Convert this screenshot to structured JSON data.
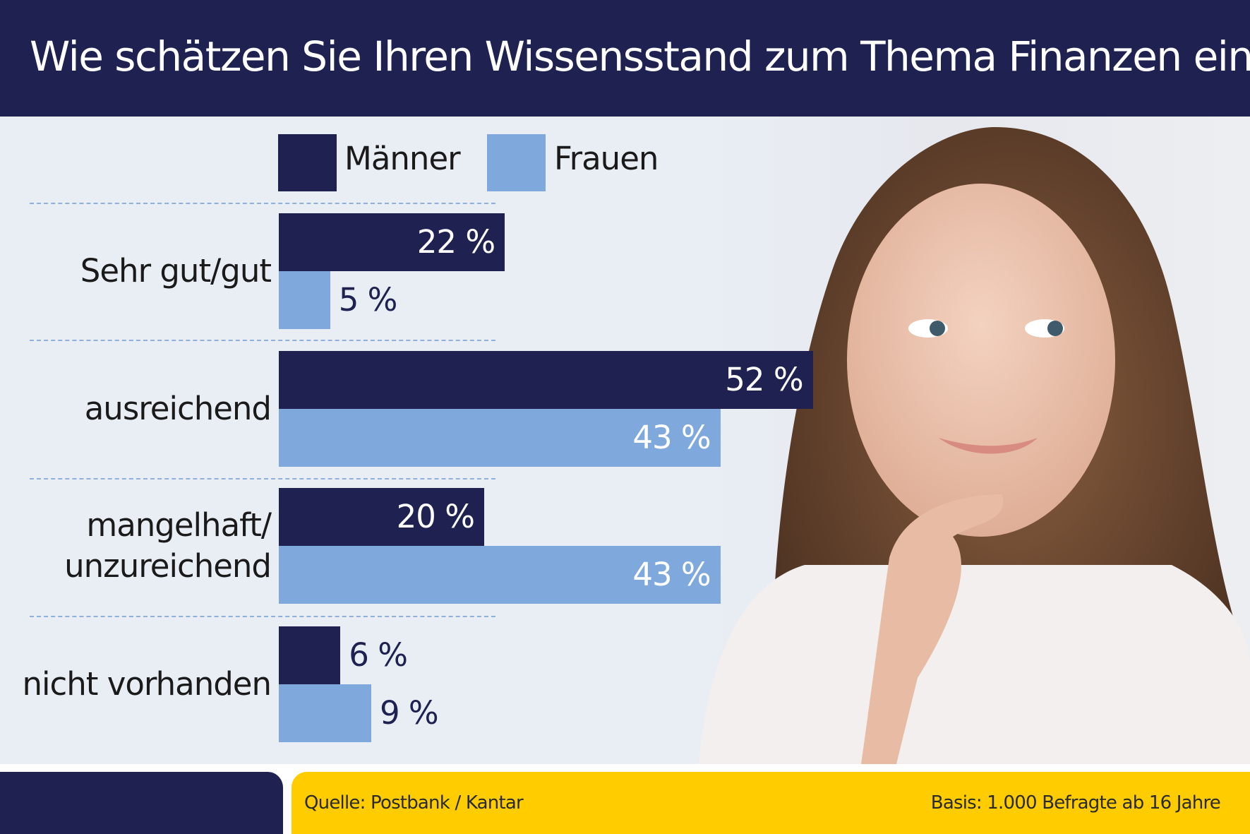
{
  "header": {
    "title": "Wie schätzen Sie Ihren Wissensstand zum Thema Finanzen ein?"
  },
  "colors": {
    "maenner": "#1f2250",
    "frauen": "#7fa9dc",
    "header": "#1f2250",
    "footer_accent": "#ffcc00"
  },
  "chart_data": {
    "type": "bar",
    "orientation": "horizontal",
    "title": "Wie schätzen Sie Ihren Wissensstand zum Thema Finanzen ein?",
    "categories": [
      "Sehr gut/gut",
      "ausreichend",
      "mangelhaft/\nunzureichend",
      "nicht vorhanden"
    ],
    "series": [
      {
        "name": "Männer",
        "values": [
          22,
          52,
          20,
          6
        ],
        "labels": [
          "22 %",
          "52 %",
          "20 %",
          "6 %"
        ]
      },
      {
        "name": "Frauen",
        "values": [
          5,
          43,
          43,
          9
        ],
        "labels": [
          "5 %",
          "43 %",
          "43 %",
          "9 %"
        ]
      }
    ],
    "unit": "%",
    "legend": "top",
    "grid": false
  },
  "footer": {
    "source": "Quelle: Postbank / Kantar",
    "basis": "Basis: 1.000 Befragte ab 16 Jahre"
  }
}
